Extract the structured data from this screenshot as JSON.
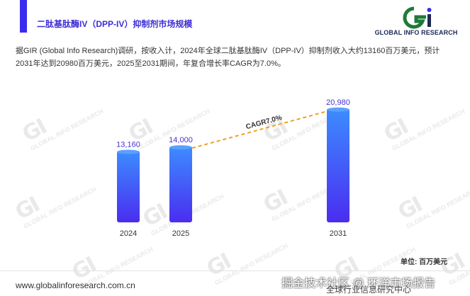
{
  "header": {
    "title": "二肽基肽酶IV（DPP-IV）抑制剂市场规模",
    "accent_color": "#3a2bf0"
  },
  "logo": {
    "mark": "GI",
    "text": "GLOBAL INFO RESEARCH"
  },
  "description": "据GIR (Global Info Research)调研，按收入计，2024年全球二肽基肽酶IV（DPP-IV）抑制剂收入大约13160百万美元，预计2031年达到20980百万美元，2025至2031期间，年复合增长率CAGR为7.0%。",
  "unit_label": "单位: 百万美元",
  "footer": {
    "url": "www.globalinforesearch.com.cn",
    "overlay_text": "掘金技术社区 @ 环洋市场报告",
    "overlay_text_2": "全球行业信息研究中心"
  },
  "chart_data": {
    "type": "bar",
    "categories": [
      "2024",
      "2025",
      "2031"
    ],
    "values": [
      13160,
      14000,
      20980
    ],
    "value_labels": [
      "13,160",
      "14,000",
      "20,980"
    ],
    "annotation": "CAGR7.0%",
    "ylim": [
      0,
      22000
    ],
    "grid": false,
    "bar_gradient": [
      "#3d8cff",
      "#4a2df0"
    ]
  }
}
